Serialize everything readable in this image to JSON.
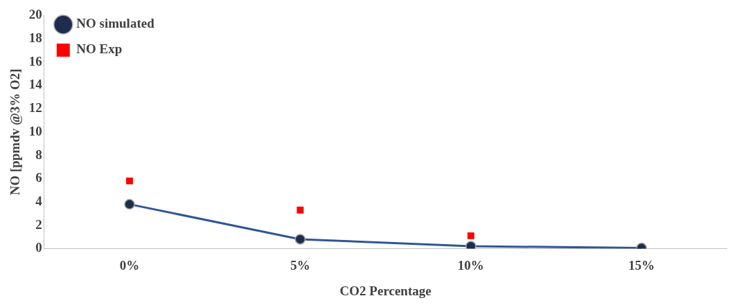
{
  "chart_data": {
    "type": "line",
    "xlabel": "CO2 Percentage",
    "ylabel": "NO [ppmdv @3% O2]",
    "categories": [
      "0%",
      "5%",
      "10%",
      "15%"
    ],
    "series": [
      {
        "name": "NO simulated",
        "color": "#2f5597",
        "marker": "circle",
        "values": [
          3.8,
          0.8,
          0.2,
          0.05
        ]
      },
      {
        "name": "NO Exp",
        "type": "scatter",
        "color": "#ff0000",
        "marker": "square",
        "x": [
          "0%",
          "5%",
          "10%"
        ],
        "values": [
          5.8,
          3.3,
          1.1
        ]
      }
    ],
    "ylim": [
      0,
      20
    ],
    "yticks": [
      0,
      2,
      4,
      6,
      8,
      10,
      12,
      14,
      16,
      18,
      20
    ],
    "grid": false,
    "legend": "top left"
  }
}
